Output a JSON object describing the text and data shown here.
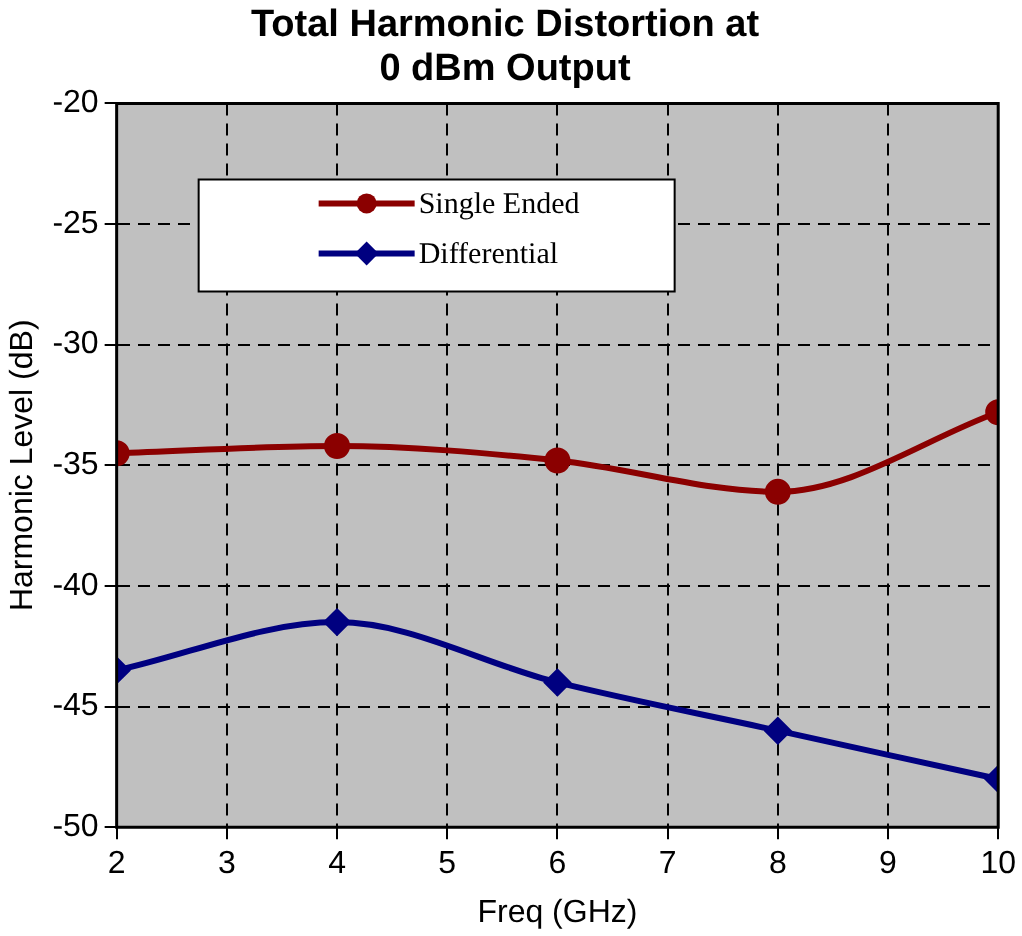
{
  "chart_data": {
    "type": "line",
    "title": "Total Harmonic Distortion at\n0 dBm Output",
    "xlabel": "Freq (GHz)",
    "ylabel": "Harmonic Level (dB)",
    "x": [
      2,
      4,
      6,
      8,
      10
    ],
    "series": [
      {
        "name": "Single Ended",
        "color": "#8b0000",
        "values": [
          -34.5,
          -34.2,
          -34.8,
          -36.1,
          -32.8
        ],
        "marker": "circle"
      },
      {
        "name": "Differential",
        "color": "#000080",
        "values": [
          -43.5,
          -41.5,
          -44.0,
          -46.0,
          -48.0
        ],
        "marker": "diamond"
      }
    ],
    "xlim": [
      2,
      10
    ],
    "xticks": [
      2,
      3,
      4,
      5,
      6,
      7,
      8,
      9,
      10
    ],
    "ylim": [
      -50,
      -20
    ],
    "yticks": [
      -50,
      -45,
      -40,
      -35,
      -30,
      -25,
      -20
    ],
    "grid": true,
    "legend": "top left",
    "line_style": "solid"
  }
}
